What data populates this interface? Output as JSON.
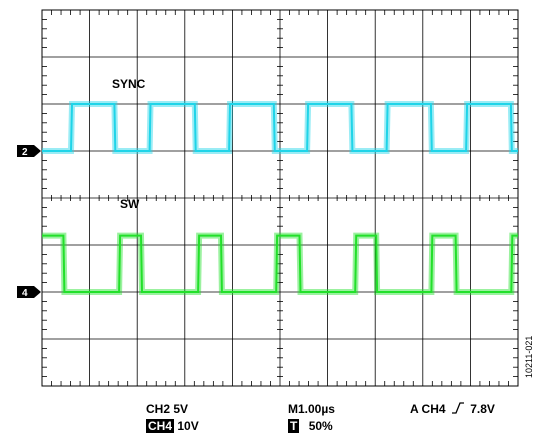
{
  "chart_data": {
    "type": "line",
    "title": "",
    "xlabel": "",
    "ylabel": "",
    "grid": true,
    "divisions": {
      "x": 10,
      "y": 8
    },
    "series": [
      {
        "name": "SYNC",
        "channel": "2",
        "color": "#1fd4e8",
        "x_us": [
          0.0,
          0.61,
          0.63,
          1.52,
          1.54,
          2.26,
          2.28,
          3.21,
          3.23,
          3.93,
          3.95,
          4.87,
          4.89,
          5.57,
          5.59,
          6.5,
          6.52,
          7.24,
          7.26,
          8.17,
          8.19,
          8.91,
          8.93,
          9.85,
          9.87,
          10.0
        ],
        "y_div": [
          0,
          0,
          1,
          1,
          0,
          0,
          1,
          1,
          0,
          0,
          1,
          1,
          0,
          0,
          1,
          1,
          0,
          0,
          1,
          1,
          0,
          0,
          1,
          1,
          0,
          0
        ]
      },
      {
        "name": "SW",
        "channel": "4",
        "color": "#22e02a",
        "x_us": [
          0.0,
          0.45,
          0.47,
          1.62,
          1.64,
          2.08,
          2.1,
          3.28,
          3.3,
          3.76,
          3.78,
          4.92,
          4.94,
          5.41,
          5.43,
          6.58,
          6.6,
          7.02,
          7.04,
          8.18,
          8.2,
          8.69,
          8.71,
          9.86,
          9.88,
          10.0
        ],
        "y_div": [
          1.2,
          1.2,
          0,
          0,
          1.2,
          1.2,
          0,
          0,
          1.2,
          1.2,
          0,
          0,
          1.2,
          1.2,
          0,
          0,
          1.2,
          1.2,
          0,
          0,
          1.2,
          1.2,
          0,
          0,
          1.2,
          1.2
        ]
      }
    ],
    "readouts": {
      "ch2_scale": "CH2  5V",
      "ch4_label": "CH4",
      "ch4_scale": "10V",
      "timebase": "M1.00µs",
      "trigger_box": "T",
      "trigger_pos": "50%",
      "trigger": "A  CH4",
      "trigger_edge": "rising",
      "trigger_level": "7.8V"
    },
    "figure_id": "10211-021"
  }
}
